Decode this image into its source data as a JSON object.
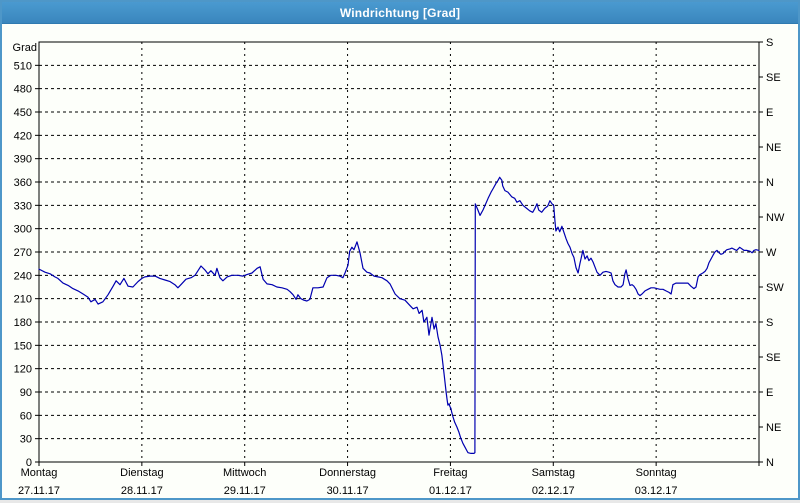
{
  "window": {
    "title": "Windrichtung [Grad]"
  },
  "colors": {
    "titlebar": "#3E8EC8",
    "window_border": "#4E97C8",
    "background": "#FDFFFA",
    "line": "#0000B0",
    "grid": "#000000",
    "text": "#000000",
    "title_text": "#FFFFFF"
  },
  "chart_data": {
    "type": "line",
    "title": "Windrichtung [Grad]",
    "ylabel": "Grad",
    "ylim": [
      0,
      540
    ],
    "y_left": {
      "label": "Grad",
      "min": 0,
      "max": 540,
      "tick_step": 30
    },
    "y_right": {
      "ticks": [
        {
          "deg": 0,
          "label": "N"
        },
        {
          "deg": 45,
          "label": "NE"
        },
        {
          "deg": 90,
          "label": "E"
        },
        {
          "deg": 135,
          "label": "SE"
        },
        {
          "deg": 180,
          "label": "S"
        },
        {
          "deg": 225,
          "label": "SW"
        },
        {
          "deg": 270,
          "label": "W"
        },
        {
          "deg": 315,
          "label": "NW"
        },
        {
          "deg": 360,
          "label": "N"
        },
        {
          "deg": 405,
          "label": "NE"
        },
        {
          "deg": 450,
          "label": "E"
        },
        {
          "deg": 495,
          "label": "SE"
        },
        {
          "deg": 540,
          "label": "S"
        }
      ]
    },
    "x_axis": {
      "hours_total": 168,
      "days": [
        {
          "name": "Montag",
          "date": "27.11.17"
        },
        {
          "name": "Dienstag",
          "date": "28.11.17"
        },
        {
          "name": "Mittwoch",
          "date": "29.11.17"
        },
        {
          "name": "Donnerstag",
          "date": "30.11.17"
        },
        {
          "name": "Freitag",
          "date": "01.12.17"
        },
        {
          "name": "Samstag",
          "date": "02.12.17"
        },
        {
          "name": "Sonntag",
          "date": "03.12.17"
        }
      ]
    },
    "grid": {
      "horizontal_step": 30,
      "vertical": "day-boundaries",
      "style": "dashed"
    },
    "series": [
      {
        "name": "Windrichtung",
        "unit": "Grad",
        "color": "#0000B0",
        "points": [
          [
            0,
            248
          ],
          [
            1.4,
            244
          ],
          [
            2.6,
            242
          ],
          [
            3.7,
            238
          ],
          [
            4.4,
            236
          ],
          [
            5.6,
            230
          ],
          [
            6.8,
            227
          ],
          [
            7.9,
            223
          ],
          [
            9.1,
            220
          ],
          [
            10.3,
            216
          ],
          [
            11.4,
            212
          ],
          [
            12.1,
            206
          ],
          [
            13.1,
            209
          ],
          [
            13.8,
            203
          ],
          [
            14.9,
            206
          ],
          [
            16.1,
            215
          ],
          [
            17.3,
            226
          ],
          [
            18,
            233
          ],
          [
            18.9,
            228
          ],
          [
            19.8,
            236
          ],
          [
            20.8,
            226
          ],
          [
            21.9,
            225
          ],
          [
            23.1,
            232
          ],
          [
            24,
            236
          ],
          [
            24.7,
            238
          ],
          [
            25.9,
            239
          ],
          [
            27.1,
            239
          ],
          [
            28.2,
            236
          ],
          [
            29.4,
            234
          ],
          [
            30.6,
            232
          ],
          [
            31.7,
            228
          ],
          [
            32.4,
            224
          ],
          [
            33.1,
            228
          ],
          [
            34.3,
            235
          ],
          [
            35.5,
            237
          ],
          [
            36.4,
            240
          ],
          [
            37.1,
            246
          ],
          [
            37.8,
            252
          ],
          [
            38.7,
            247
          ],
          [
            39.4,
            242
          ],
          [
            40.1,
            246
          ],
          [
            41.1,
            240
          ],
          [
            41.5,
            249
          ],
          [
            42.2,
            237
          ],
          [
            42.9,
            233
          ],
          [
            43.9,
            238
          ],
          [
            45,
            240
          ],
          [
            46.4,
            240
          ],
          [
            47.6,
            239
          ],
          [
            48.5,
            241
          ],
          [
            49.7,
            243
          ],
          [
            50.9,
            249
          ],
          [
            51.6,
            251
          ],
          [
            52.3,
            235
          ],
          [
            53.2,
            229
          ],
          [
            54.4,
            228
          ],
          [
            55.5,
            225
          ],
          [
            56.7,
            224
          ],
          [
            57.9,
            222
          ],
          [
            58.6,
            219
          ],
          [
            59.3,
            215
          ],
          [
            60,
            209
          ],
          [
            60.4,
            215
          ],
          [
            61.1,
            210
          ],
          [
            61.8,
            208
          ],
          [
            62.5,
            207
          ],
          [
            63.2,
            209
          ],
          [
            63.9,
            224
          ],
          [
            65.1,
            224
          ],
          [
            66.3,
            225
          ],
          [
            67.2,
            237
          ],
          [
            68.1,
            240
          ],
          [
            69.3,
            240
          ],
          [
            70.2,
            239
          ],
          [
            70.9,
            237
          ],
          [
            71.4,
            243
          ],
          [
            72.1,
            253
          ],
          [
            72.5,
            271
          ],
          [
            73,
            276
          ],
          [
            73.5,
            273
          ],
          [
            74.2,
            283
          ],
          [
            74.9,
            269
          ],
          [
            75.6,
            249
          ],
          [
            76.5,
            244
          ],
          [
            77.2,
            243
          ],
          [
            78.2,
            239
          ],
          [
            79.1,
            238
          ],
          [
            80,
            237
          ],
          [
            81.2,
            233
          ],
          [
            81.9,
            229
          ],
          [
            83.1,
            216
          ],
          [
            84.2,
            210
          ],
          [
            85.4,
            208
          ],
          [
            86.6,
            201
          ],
          [
            87.3,
            197
          ],
          [
            88.2,
            199
          ],
          [
            88.7,
            191
          ],
          [
            89.4,
            195
          ],
          [
            89.8,
            180
          ],
          [
            90.5,
            186
          ],
          [
            91,
            163
          ],
          [
            91.7,
            186
          ],
          [
            92.2,
            171
          ],
          [
            92.6,
            178
          ],
          [
            93.1,
            161
          ],
          [
            93.6,
            150
          ],
          [
            94,
            137
          ],
          [
            94.5,
            114
          ],
          [
            95,
            90
          ],
          [
            95.2,
            81
          ],
          [
            95.4,
            73
          ],
          [
            95.7,
            75
          ],
          [
            95.9,
            71
          ],
          [
            96.1,
            69
          ],
          [
            96.3,
            64
          ],
          [
            96.6,
            58
          ],
          [
            97,
            51
          ],
          [
            97.5,
            45
          ],
          [
            98,
            38
          ],
          [
            98.4,
            31
          ],
          [
            98.9,
            24
          ],
          [
            99.4,
            19
          ],
          [
            99.9,
            14
          ],
          [
            100.1,
            12
          ],
          [
            100.8,
            11
          ],
          [
            101.5,
            11
          ],
          [
            101.7,
            12
          ],
          [
            101.8,
            332
          ],
          [
            102.4,
            324
          ],
          [
            102.9,
            317
          ],
          [
            103.6,
            324
          ],
          [
            104.1,
            330
          ],
          [
            104.8,
            339
          ],
          [
            105.5,
            347
          ],
          [
            105.9,
            351
          ],
          [
            106.6,
            358
          ],
          [
            107.1,
            362
          ],
          [
            107.5,
            366
          ],
          [
            108,
            362
          ],
          [
            108.2,
            355
          ],
          [
            108.7,
            349
          ],
          [
            109.4,
            347
          ],
          [
            110.3,
            341
          ],
          [
            111,
            339
          ],
          [
            111.5,
            334
          ],
          [
            112.2,
            336
          ],
          [
            112.9,
            330
          ],
          [
            113.8,
            326
          ],
          [
            114.5,
            323
          ],
          [
            115.2,
            321
          ],
          [
            115.7,
            326
          ],
          [
            116.2,
            332
          ],
          [
            116.6,
            324
          ],
          [
            117.3,
            321
          ],
          [
            118,
            326
          ],
          [
            118.7,
            329
          ],
          [
            119.2,
            336
          ],
          [
            119.7,
            332
          ],
          [
            120.1,
            330
          ],
          [
            120.4,
            309
          ],
          [
            120.6,
            297
          ],
          [
            121.1,
            302
          ],
          [
            121.5,
            296
          ],
          [
            122,
            303
          ],
          [
            122.5,
            295
          ],
          [
            123,
            287
          ],
          [
            123.4,
            281
          ],
          [
            123.9,
            276
          ],
          [
            124.4,
            268
          ],
          [
            124.8,
            263
          ],
          [
            125.3,
            250
          ],
          [
            125.8,
            243
          ],
          [
            126.2,
            255
          ],
          [
            126.9,
            272
          ],
          [
            127.4,
            261
          ],
          [
            127.9,
            265
          ],
          [
            128.3,
            259
          ],
          [
            128.8,
            262
          ],
          [
            129.3,
            257
          ],
          [
            129.7,
            251
          ],
          [
            130.2,
            244
          ],
          [
            130.9,
            240
          ],
          [
            131.6,
            244
          ],
          [
            132.3,
            245
          ],
          [
            133,
            244
          ],
          [
            133.5,
            243
          ],
          [
            133.9,
            233
          ],
          [
            134.4,
            228
          ],
          [
            135.1,
            225
          ],
          [
            135.8,
            225
          ],
          [
            136.3,
            228
          ],
          [
            136.7,
            242
          ],
          [
            137,
            247
          ],
          [
            137.4,
            236
          ],
          [
            137.9,
            227
          ],
          [
            138.4,
            228
          ],
          [
            138.8,
            226
          ],
          [
            139.3,
            222
          ],
          [
            139.8,
            216
          ],
          [
            140.2,
            214
          ],
          [
            140.7,
            216
          ],
          [
            141.4,
            220
          ],
          [
            142.1,
            222
          ],
          [
            142.8,
            224
          ],
          [
            143.5,
            224
          ],
          [
            144.2,
            223
          ],
          [
            144.9,
            222
          ],
          [
            145.6,
            222
          ],
          [
            146.3,
            220
          ],
          [
            147,
            218
          ],
          [
            147.5,
            216
          ],
          [
            147.9,
            228
          ],
          [
            148.6,
            230
          ],
          [
            149.6,
            230
          ],
          [
            150.5,
            230
          ],
          [
            151.4,
            230
          ],
          [
            152.1,
            226
          ],
          [
            152.8,
            223
          ],
          [
            153.3,
            225
          ],
          [
            153.8,
            238
          ],
          [
            154.2,
            241
          ],
          [
            154.9,
            243
          ],
          [
            155.4,
            245
          ],
          [
            155.9,
            249
          ],
          [
            156.3,
            256
          ],
          [
            156.8,
            261
          ],
          [
            157.3,
            266
          ],
          [
            157.7,
            270
          ],
          [
            158.2,
            272
          ],
          [
            158.7,
            269
          ],
          [
            159.1,
            267
          ],
          [
            159.6,
            268
          ],
          [
            160.1,
            271
          ],
          [
            160.5,
            273
          ],
          [
            161.2,
            274
          ],
          [
            161.7,
            275
          ],
          [
            162.4,
            273
          ],
          [
            162.8,
            272
          ],
          [
            163.5,
            276
          ],
          [
            164,
            274
          ],
          [
            164.5,
            272
          ],
          [
            165.2,
            272
          ],
          [
            165.9,
            271
          ],
          [
            166.4,
            269
          ],
          [
            166.8,
            272
          ],
          [
            167.3,
            273
          ],
          [
            168,
            272
          ]
        ]
      }
    ]
  }
}
